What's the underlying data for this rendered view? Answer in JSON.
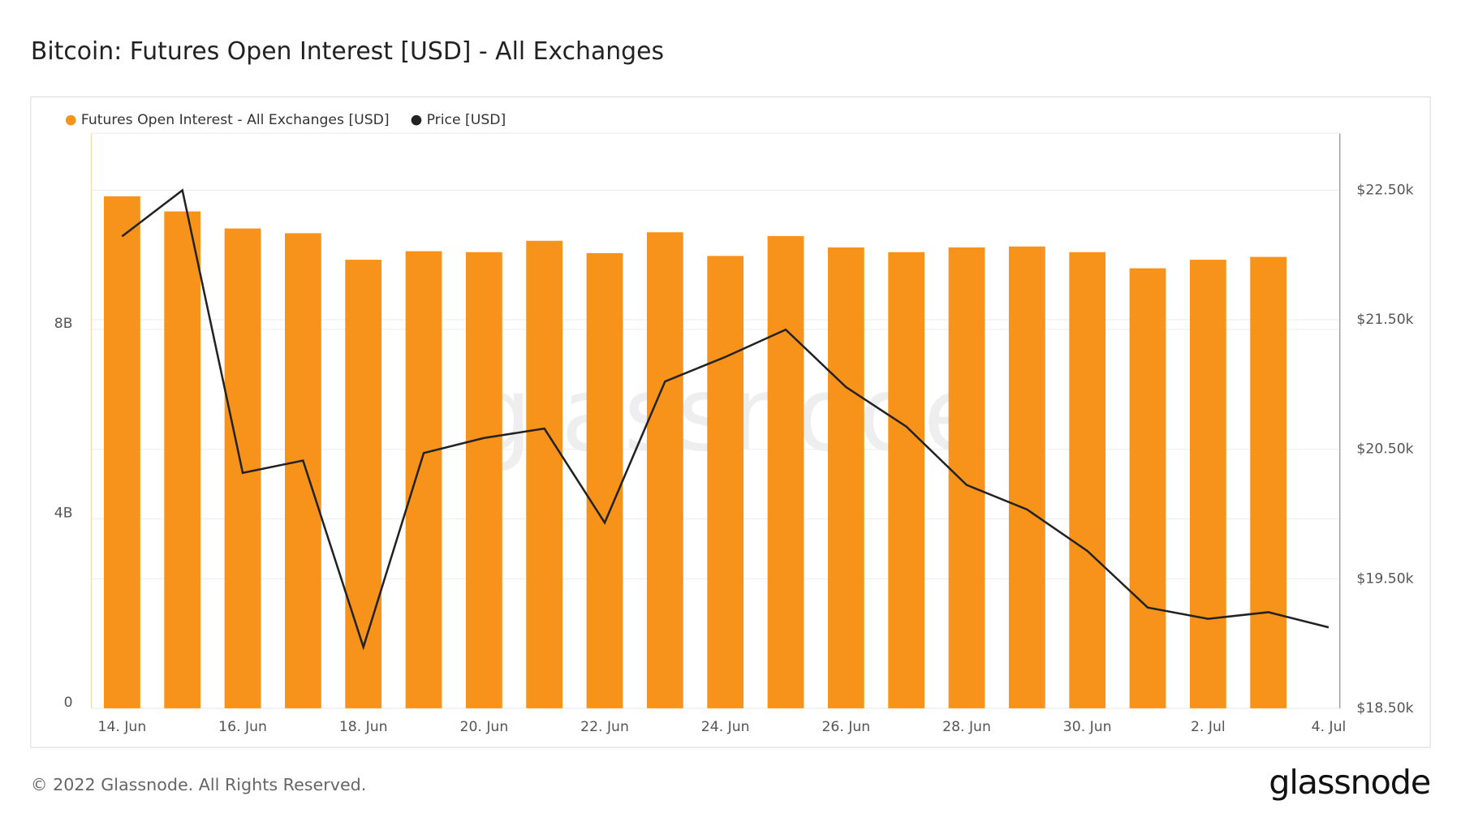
{
  "chart_data": {
    "type": "bar",
    "title": "Bitcoin: Futures Open Interest [USD] - All Exchanges",
    "watermark": "glassnode",
    "footer": "© 2022 Glassnode. All Rights Reserved.",
    "logo": "glassnode",
    "categories": [
      "14. Jun",
      null,
      "16. Jun",
      null,
      "18. Jun",
      null,
      "20. Jun",
      null,
      "22. Jun",
      null,
      "24. Jun",
      null,
      "26. Jun",
      null,
      "28. Jun",
      null,
      "30. Jun",
      null,
      "2. Jul",
      null,
      "4. Jul"
    ],
    "series": [
      {
        "name": "Futures Open Interest - All Exchanges [USD]",
        "color": "#f7931a",
        "type": "bar",
        "values": [
          10810000000,
          10490000000,
          10130000000,
          10030000000,
          9470000000,
          9650000000,
          9630000000,
          9870000000,
          9610000000,
          10050000000,
          9550000000,
          9970000000,
          9730000000,
          9630000000,
          9730000000,
          9750000000,
          9630000000,
          9290000000,
          9470000000,
          9530000000,
          null
        ]
      },
      {
        "name": "Price [USD]",
        "color": "#222222",
        "type": "line",
        "axis": "y2",
        "values": [
          22144,
          22500,
          20318,
          20413,
          18973,
          20471,
          20587,
          20660,
          19933,
          21024,
          21213,
          21424,
          20980,
          20675,
          20224,
          20035,
          19715,
          19278,
          19191,
          19242,
          19125
        ]
      }
    ],
    "ylim": [
      0,
      12140000000
    ],
    "yticks": [
      {
        "value": 0,
        "label": "0"
      },
      {
        "value": 4000000000,
        "label": "4B"
      },
      {
        "value": 8000000000,
        "label": "8B"
      }
    ],
    "y2lim": [
      18500,
      22940
    ],
    "y2ticks": [
      {
        "value": 18500,
        "label": "$18.50k"
      },
      {
        "value": 19500,
        "label": "$19.50k"
      },
      {
        "value": 20500,
        "label": "$20.50k"
      },
      {
        "value": 21500,
        "label": "$21.50k"
      },
      {
        "value": 22500,
        "label": "$22.50k"
      }
    ],
    "grid": true,
    "legend": "top-left"
  }
}
